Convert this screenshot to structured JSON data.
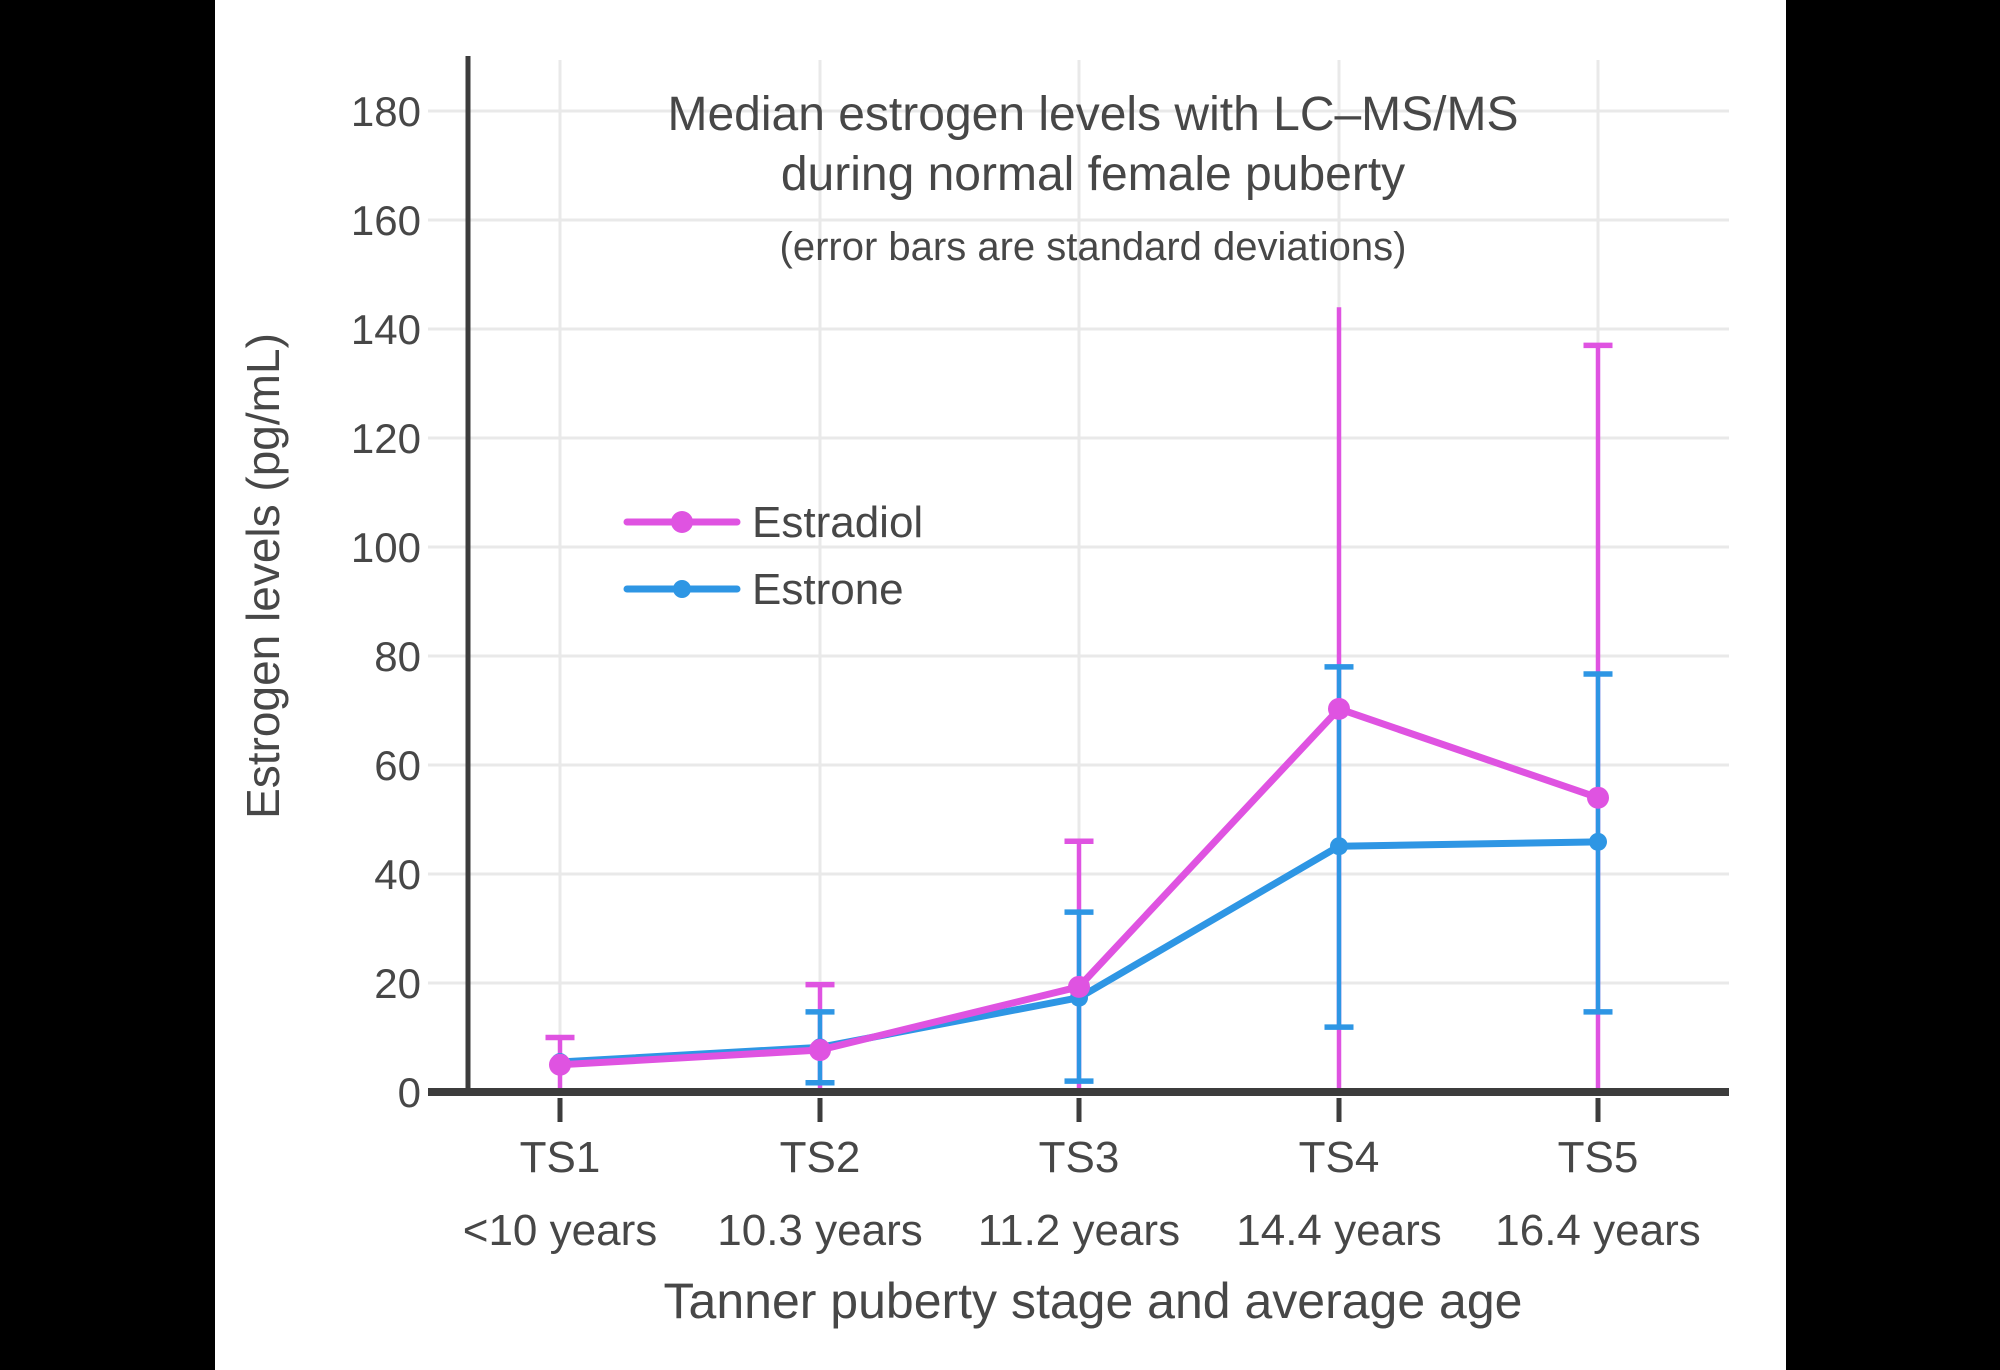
{
  "letterbox": {
    "color": "#000000"
  },
  "figure": {
    "background": "#ffffff"
  },
  "chart_data": {
    "type": "line",
    "title_lines": [
      "Median estrogen levels with LC–MS/MS",
      "during normal female puberty"
    ],
    "subtitle": "(error bars are standard deviations)",
    "xlabel": "Tanner puberty stage and average age",
    "ylabel": "Estrogen levels (pg/mL)",
    "categories": [
      {
        "stage": "TS1",
        "age": "<10 years"
      },
      {
        "stage": "TS2",
        "age": "10.3 years"
      },
      {
        "stage": "TS3",
        "age": "11.2 years"
      },
      {
        "stage": "TS4",
        "age": "14.4 years"
      },
      {
        "stage": "TS5",
        "age": "16.4 years"
      }
    ],
    "yticks": [
      0,
      20,
      40,
      60,
      80,
      100,
      120,
      140,
      160,
      180
    ],
    "ylim": [
      0,
      189
    ],
    "grid": true,
    "legend": {
      "position": "inside-upper-left",
      "items": [
        "Estradiol",
        "Estrone"
      ]
    },
    "series": [
      {
        "name": "Estradiol",
        "color": "#DF53E1",
        "values": [
          5,
          7.7,
          19.3,
          70.3,
          54
        ],
        "error_high": [
          10,
          19.7,
          46,
          144,
          137
        ],
        "error_low": [
          0,
          0,
          0,
          0,
          0
        ],
        "cap_high": [
          true,
          true,
          true,
          false,
          true
        ],
        "cap_low": [
          true,
          true,
          true,
          false,
          false
        ]
      },
      {
        "name": "Estrone",
        "color": "#2E96E4",
        "values": [
          5.5,
          8.2,
          17.3,
          45.1,
          45.9
        ],
        "error_high": [
          null,
          14.7,
          33,
          78,
          76.7
        ],
        "error_low": [
          null,
          1.7,
          2,
          11.9,
          14.7
        ],
        "cap_high": [
          false,
          true,
          true,
          true,
          true
        ],
        "cap_low": [
          false,
          true,
          true,
          true,
          true
        ]
      }
    ],
    "style": {
      "axis_color": "#3C3C3C",
      "grid_color": "#E9E9E9",
      "text_color": "#474747"
    }
  }
}
